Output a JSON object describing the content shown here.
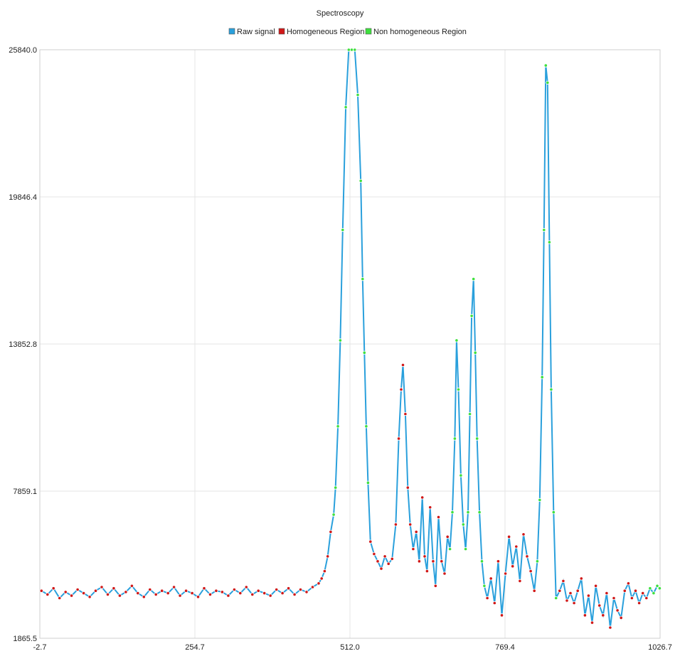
{
  "chart_data": {
    "type": "line",
    "title": "Spectroscopy",
    "xlabel": "",
    "ylabel": "",
    "xlim": [
      -2.7,
      1026.7
    ],
    "ylim": [
      1865.5,
      25840.0
    ],
    "x_ticks": [
      "-2.7",
      "254.7",
      "512.0",
      "769.4",
      "1026.7"
    ],
    "y_ticks": [
      "1865.5",
      "7859.1",
      "13852.8",
      "19846.4",
      "25840.0"
    ],
    "grid": true,
    "legend_position": "top-center",
    "colors": {
      "raw": "#2aa0dc",
      "homogeneous": "#d01818",
      "non_homogeneous": "#3ee03e"
    },
    "series": [
      {
        "name": "Raw signal",
        "role": "line"
      },
      {
        "name": "Homogeneous Region",
        "role": "points"
      },
      {
        "name": "Non homogeneous Region",
        "role": "points"
      }
    ],
    "points": [
      [
        0,
        3800,
        "h"
      ],
      [
        10,
        3650,
        "h"
      ],
      [
        20,
        3900,
        "h"
      ],
      [
        30,
        3500,
        "h"
      ],
      [
        40,
        3750,
        "h"
      ],
      [
        50,
        3600,
        "h"
      ],
      [
        60,
        3850,
        "h"
      ],
      [
        70,
        3700,
        "h"
      ],
      [
        80,
        3550,
        "h"
      ],
      [
        90,
        3800,
        "h"
      ],
      [
        100,
        3950,
        "h"
      ],
      [
        110,
        3650,
        "h"
      ],
      [
        120,
        3900,
        "h"
      ],
      [
        130,
        3600,
        "h"
      ],
      [
        140,
        3750,
        "h"
      ],
      [
        150,
        4000,
        "h"
      ],
      [
        160,
        3700,
        "h"
      ],
      [
        170,
        3550,
        "h"
      ],
      [
        180,
        3850,
        "h"
      ],
      [
        190,
        3650,
        "h"
      ],
      [
        200,
        3800,
        "h"
      ],
      [
        210,
        3700,
        "h"
      ],
      [
        220,
        3950,
        "h"
      ],
      [
        230,
        3600,
        "h"
      ],
      [
        240,
        3800,
        "h"
      ],
      [
        250,
        3700,
        "h"
      ],
      [
        260,
        3550,
        "h"
      ],
      [
        270,
        3900,
        "h"
      ],
      [
        280,
        3650,
        "h"
      ],
      [
        290,
        3800,
        "h"
      ],
      [
        300,
        3750,
        "h"
      ],
      [
        310,
        3600,
        "h"
      ],
      [
        320,
        3850,
        "h"
      ],
      [
        330,
        3700,
        "h"
      ],
      [
        340,
        3950,
        "h"
      ],
      [
        350,
        3650,
        "h"
      ],
      [
        360,
        3800,
        "h"
      ],
      [
        370,
        3700,
        "h"
      ],
      [
        380,
        3600,
        "h"
      ],
      [
        390,
        3850,
        "h"
      ],
      [
        400,
        3700,
        "h"
      ],
      [
        410,
        3900,
        "h"
      ],
      [
        420,
        3650,
        "h"
      ],
      [
        430,
        3850,
        "h"
      ],
      [
        440,
        3750,
        "h"
      ],
      [
        450,
        3950,
        "h"
      ],
      [
        460,
        4100,
        "h"
      ],
      [
        465,
        4300,
        "h"
      ],
      [
        470,
        4600,
        "h"
      ],
      [
        475,
        5200,
        "h"
      ],
      [
        480,
        6200,
        "h"
      ],
      [
        485,
        6900,
        "n"
      ],
      [
        488,
        8000,
        "n"
      ],
      [
        492,
        10500,
        "n"
      ],
      [
        496,
        14000,
        "n"
      ],
      [
        500,
        18500,
        "n"
      ],
      [
        505,
        23500,
        "n"
      ],
      [
        510,
        25840,
        "n"
      ],
      [
        515,
        25840,
        "n"
      ],
      [
        520,
        25840,
        "n"
      ],
      [
        525,
        24000,
        "n"
      ],
      [
        530,
        20500,
        "n"
      ],
      [
        533,
        16500,
        "n"
      ],
      [
        536,
        13500,
        "n"
      ],
      [
        539,
        10500,
        "n"
      ],
      [
        542,
        8200,
        "n"
      ],
      [
        546,
        5800,
        "h"
      ],
      [
        552,
        5300,
        "h"
      ],
      [
        558,
        5000,
        "h"
      ],
      [
        564,
        4700,
        "h"
      ],
      [
        570,
        5200,
        "h"
      ],
      [
        576,
        4900,
        "h"
      ],
      [
        582,
        5100,
        "h"
      ],
      [
        588,
        6500,
        "h"
      ],
      [
        593,
        10000,
        "h"
      ],
      [
        597,
        12000,
        "h"
      ],
      [
        600,
        13000,
        "h"
      ],
      [
        604,
        11000,
        "h"
      ],
      [
        608,
        8000,
        "h"
      ],
      [
        612,
        6500,
        "h"
      ],
      [
        617,
        5500,
        "h"
      ],
      [
        622,
        6200,
        "h"
      ],
      [
        627,
        5000,
        "h"
      ],
      [
        632,
        7600,
        "h"
      ],
      [
        636,
        5200,
        "h"
      ],
      [
        640,
        4600,
        "h"
      ],
      [
        645,
        7200,
        "h"
      ],
      [
        650,
        5000,
        "h"
      ],
      [
        654,
        4000,
        "h"
      ],
      [
        659,
        6800,
        "h"
      ],
      [
        664,
        5000,
        "h"
      ],
      [
        669,
        4500,
        "h"
      ],
      [
        674,
        6000,
        "h"
      ],
      [
        678,
        5500,
        "n"
      ],
      [
        682,
        7000,
        "n"
      ],
      [
        686,
        10000,
        "n"
      ],
      [
        689,
        14000,
        "n"
      ],
      [
        692,
        12000,
        "n"
      ],
      [
        696,
        8500,
        "n"
      ],
      [
        700,
        6500,
        "n"
      ],
      [
        704,
        5500,
        "n"
      ],
      [
        708,
        7000,
        "n"
      ],
      [
        711,
        11000,
        "n"
      ],
      [
        714,
        15000,
        "n"
      ],
      [
        717,
        16500,
        "n"
      ],
      [
        720,
        13500,
        "n"
      ],
      [
        723,
        10000,
        "n"
      ],
      [
        727,
        7000,
        "n"
      ],
      [
        731,
        5000,
        "n"
      ],
      [
        735,
        4000,
        "n"
      ],
      [
        740,
        3500,
        "h"
      ],
      [
        746,
        4300,
        "h"
      ],
      [
        752,
        3300,
        "h"
      ],
      [
        758,
        5000,
        "h"
      ],
      [
        764,
        2800,
        "h"
      ],
      [
        770,
        4500,
        "h"
      ],
      [
        776,
        6000,
        "h"
      ],
      [
        782,
        4800,
        "h"
      ],
      [
        788,
        5600,
        "h"
      ],
      [
        794,
        4200,
        "h"
      ],
      [
        800,
        6100,
        "h"
      ],
      [
        806,
        5200,
        "h"
      ],
      [
        812,
        4600,
        "h"
      ],
      [
        818,
        3800,
        "h"
      ],
      [
        823,
        5000,
        "n"
      ],
      [
        827,
        7500,
        "n"
      ],
      [
        831,
        12500,
        "n"
      ],
      [
        834,
        18500,
        "n"
      ],
      [
        837,
        25200,
        "n"
      ],
      [
        840,
        24500,
        "n"
      ],
      [
        843,
        18000,
        "n"
      ],
      [
        846,
        12000,
        "n"
      ],
      [
        850,
        7000,
        "n"
      ],
      [
        854,
        3500,
        "n"
      ],
      [
        860,
        3800,
        "h"
      ],
      [
        866,
        4200,
        "h"
      ],
      [
        872,
        3400,
        "h"
      ],
      [
        878,
        3700,
        "h"
      ],
      [
        884,
        3300,
        "h"
      ],
      [
        890,
        3800,
        "h"
      ],
      [
        896,
        4300,
        "h"
      ],
      [
        902,
        2800,
        "h"
      ],
      [
        908,
        3600,
        "h"
      ],
      [
        914,
        2500,
        "h"
      ],
      [
        920,
        4000,
        "h"
      ],
      [
        926,
        3200,
        "h"
      ],
      [
        932,
        2800,
        "h"
      ],
      [
        938,
        3700,
        "h"
      ],
      [
        944,
        2300,
        "h"
      ],
      [
        950,
        3500,
        "h"
      ],
      [
        956,
        3000,
        "h"
      ],
      [
        962,
        2700,
        "h"
      ],
      [
        968,
        3800,
        "h"
      ],
      [
        974,
        4100,
        "h"
      ],
      [
        980,
        3500,
        "h"
      ],
      [
        986,
        3800,
        "h"
      ],
      [
        992,
        3300,
        "h"
      ],
      [
        998,
        3700,
        "h"
      ],
      [
        1004,
        3500,
        "h"
      ],
      [
        1010,
        3900,
        "n"
      ],
      [
        1016,
        3700,
        "n"
      ],
      [
        1022,
        4000,
        "n"
      ],
      [
        1026,
        3900,
        "n"
      ]
    ]
  }
}
